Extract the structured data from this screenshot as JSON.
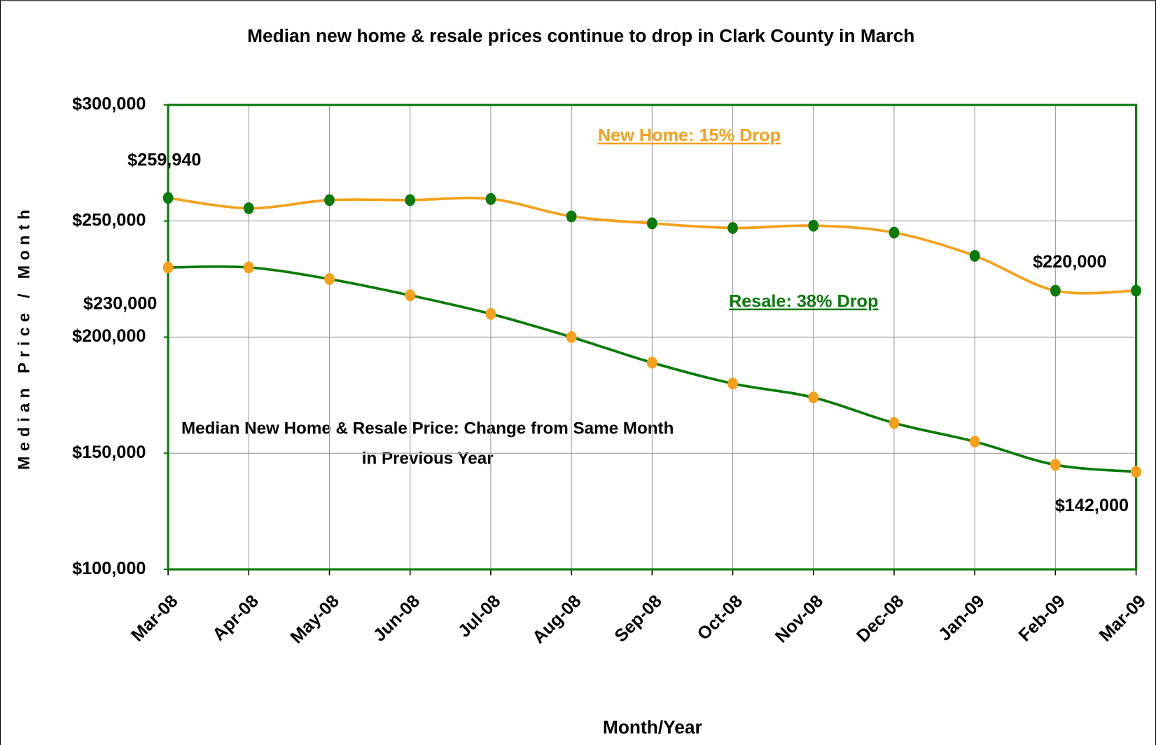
{
  "chart_data": {
    "type": "line",
    "title": "Median new home & resale prices continue to drop in Clark County in March",
    "x_label": "Month/Year",
    "y_label": "Median Price / Month",
    "annotation": [
      "Median New Home & Resale Price: Change from Same Month",
      "in Previous Year"
    ],
    "categories": [
      "Mar-08",
      "Apr-08",
      "May-08",
      "Jun-08",
      "Jul-08",
      "Aug-08",
      "Sep-08",
      "Oct-08",
      "Nov-08",
      "Dec-08",
      "Jan-09",
      "Feb-09",
      "Mar-09"
    ],
    "series": [
      {
        "name": "New Home: 15% Drop",
        "color": "#f5a01a",
        "marker_color": "#0a7a0a",
        "values": [
          259940,
          255500,
          259000,
          259000,
          259500,
          252000,
          249000,
          247000,
          248000,
          245000,
          235000,
          220000,
          220000
        ],
        "value_labels": [
          "$259,940",
          null,
          null,
          null,
          null,
          null,
          null,
          null,
          null,
          null,
          null,
          null,
          "$220,000"
        ]
      },
      {
        "name": "Resale: 38% Drop",
        "color": "#0a7a0a",
        "marker_color": "#f5a01a",
        "values": [
          230000,
          230000,
          225000,
          218000,
          210000,
          200000,
          189000,
          180000,
          174000,
          163000,
          155000,
          145000,
          142000
        ],
        "value_labels": [
          "$230,000",
          null,
          null,
          null,
          null,
          null,
          null,
          null,
          null,
          null,
          null,
          null,
          "$142,000"
        ]
      }
    ],
    "ylim": [
      100000,
      300000
    ],
    "yticks": [
      {
        "value": 100000,
        "label": "$100,000"
      },
      {
        "value": 150000,
        "label": "$150,000"
      },
      {
        "value": 200000,
        "label": "$200,000"
      },
      {
        "value": 250000,
        "label": "$250,000"
      },
      {
        "value": 300000,
        "label": "$300,000"
      }
    ],
    "grid": true
  }
}
